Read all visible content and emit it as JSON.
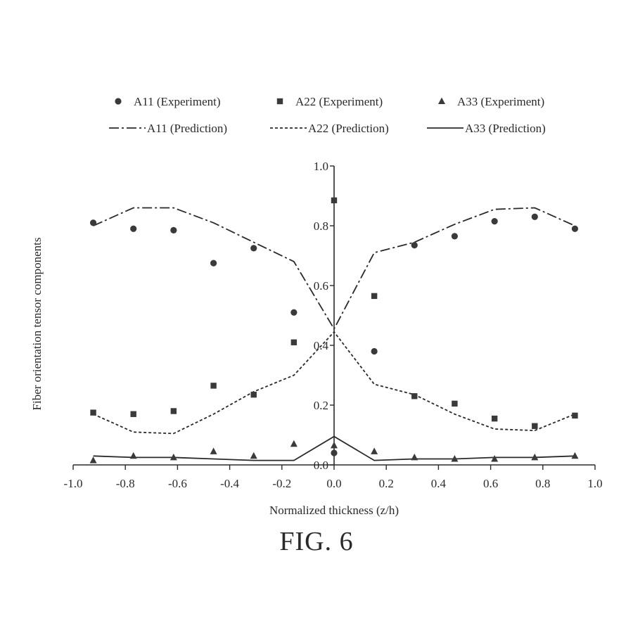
{
  "figure": {
    "caption": "FIG. 6"
  },
  "chart_data": {
    "type": "scatter",
    "xlabel": "Normalized thickness (z/h)",
    "ylabel": "Fiber orientation tensor components",
    "xlim": [
      -1.0,
      1.0
    ],
    "ylim": [
      0.0,
      1.0
    ],
    "x_ticks": [
      "-1.0",
      "-0.8",
      "-0.6",
      "-0.4",
      "-0.2",
      "0.0",
      "0.2",
      "0.4",
      "0.6",
      "0.8",
      "1.0"
    ],
    "y_ticks": [
      "0.0",
      "0.2",
      "0.4",
      "0.6",
      "0.8",
      "1.0"
    ],
    "grid": false,
    "legend_position": "top",
    "series": [
      {
        "name": "A11 (Experiment)",
        "kind": "scatter",
        "marker": "circle",
        "x": [
          -0.923,
          -0.769,
          -0.615,
          -0.462,
          -0.308,
          -0.154,
          0.0,
          0.154,
          0.308,
          0.462,
          0.615,
          0.769,
          0.923
        ],
        "y": [
          0.81,
          0.79,
          0.785,
          0.675,
          0.725,
          0.51,
          0.04,
          0.38,
          0.735,
          0.765,
          0.815,
          0.83,
          0.79
        ]
      },
      {
        "name": "A22 (Experiment)",
        "kind": "scatter",
        "marker": "square",
        "x": [
          -0.923,
          -0.769,
          -0.615,
          -0.462,
          -0.308,
          -0.154,
          0.0,
          0.154,
          0.308,
          0.462,
          0.615,
          0.769,
          0.923
        ],
        "y": [
          0.175,
          0.17,
          0.18,
          0.265,
          0.235,
          0.41,
          0.885,
          0.565,
          0.23,
          0.205,
          0.155,
          0.13,
          0.165
        ]
      },
      {
        "name": "A33 (Experiment)",
        "kind": "scatter",
        "marker": "triangle",
        "x": [
          -0.923,
          -0.769,
          -0.615,
          -0.462,
          -0.308,
          -0.154,
          0.0,
          0.154,
          0.308,
          0.462,
          0.615,
          0.769,
          0.923
        ],
        "y": [
          0.015,
          0.03,
          0.025,
          0.045,
          0.03,
          0.07,
          0.065,
          0.045,
          0.025,
          0.02,
          0.02,
          0.025,
          0.03
        ]
      },
      {
        "name": "A11 (Prediction)",
        "kind": "line",
        "dash": "dashdot",
        "x": [
          -0.923,
          -0.769,
          -0.615,
          -0.462,
          -0.308,
          -0.154,
          0.0,
          0.154,
          0.308,
          0.462,
          0.615,
          0.769,
          0.923
        ],
        "y": [
          0.8,
          0.86,
          0.86,
          0.81,
          0.745,
          0.68,
          0.455,
          0.71,
          0.745,
          0.805,
          0.855,
          0.86,
          0.8
        ]
      },
      {
        "name": "A22 (Prediction)",
        "kind": "line",
        "dash": "dotted",
        "x": [
          -0.923,
          -0.769,
          -0.615,
          -0.462,
          -0.308,
          -0.154,
          0.0,
          0.154,
          0.308,
          0.462,
          0.615,
          0.769,
          0.923
        ],
        "y": [
          0.17,
          0.11,
          0.105,
          0.17,
          0.245,
          0.3,
          0.445,
          0.27,
          0.235,
          0.17,
          0.12,
          0.115,
          0.17
        ]
      },
      {
        "name": "A33 (Prediction)",
        "kind": "line",
        "dash": "solid",
        "x": [
          -0.923,
          -0.769,
          -0.615,
          -0.462,
          -0.308,
          -0.154,
          0.0,
          0.154,
          0.308,
          0.462,
          0.615,
          0.769,
          0.923
        ],
        "y": [
          0.03,
          0.025,
          0.025,
          0.02,
          0.015,
          0.015,
          0.095,
          0.015,
          0.02,
          0.02,
          0.025,
          0.025,
          0.03
        ]
      }
    ],
    "colors": {
      "ink": "#2a2a2a",
      "marker": "#3a3a3a"
    }
  }
}
